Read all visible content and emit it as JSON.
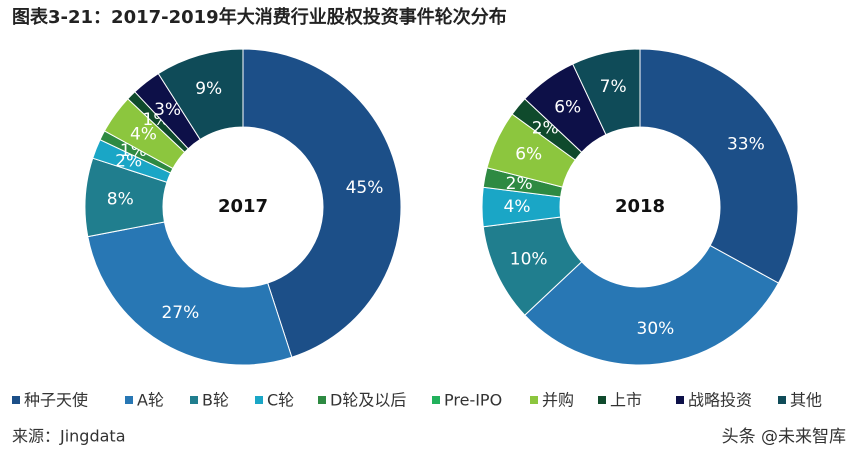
{
  "title": "图表3-21：2017-2019年大消费行业股权投资事件轮次分布",
  "chart_data": [
    {
      "type": "donut",
      "title": "2017",
      "categories": [
        "种子天使",
        "A轮",
        "B轮",
        "C轮",
        "D轮及以后",
        "Pre-IPO",
        "并购",
        "上市",
        "战略投资",
        "其他"
      ],
      "values": [
        45,
        27,
        8,
        2,
        1,
        0,
        4,
        1,
        3,
        9
      ],
      "value_labels": [
        "45%",
        "27%",
        "8%",
        "2%",
        "1%",
        null,
        "4%",
        "1%",
        "3%",
        "9%"
      ],
      "colors": [
        "#1c4f88",
        "#2877b4",
        "#207e8e",
        "#1aa6c6",
        "#2e8a42",
        "#22b15c",
        "#8cc63e",
        "#0f4a2c",
        "#0d1048",
        "#0f4b58"
      ],
      "legend": "bottom"
    },
    {
      "type": "donut",
      "title": "2018",
      "categories": [
        "种子天使",
        "A轮",
        "B轮",
        "C轮",
        "D轮及以后",
        "Pre-IPO",
        "并购",
        "上市",
        "战略投资",
        "其他"
      ],
      "values": [
        33,
        30,
        10,
        4,
        2,
        0,
        6,
        2,
        6,
        7
      ],
      "value_labels": [
        "33%",
        "30%",
        "10%",
        "4%",
        "2%",
        null,
        "6%",
        "2%",
        "6%",
        "7%"
      ],
      "colors": [
        "#1c4f88",
        "#2877b4",
        "#207e8e",
        "#1aa6c6",
        "#2e8a42",
        "#22b15c",
        "#8cc63e",
        "#0f4a2c",
        "#0d1048",
        "#0f4b58"
      ]
    }
  ],
  "source": "来源：Jingdata",
  "watermark": "头条 @未来智库"
}
